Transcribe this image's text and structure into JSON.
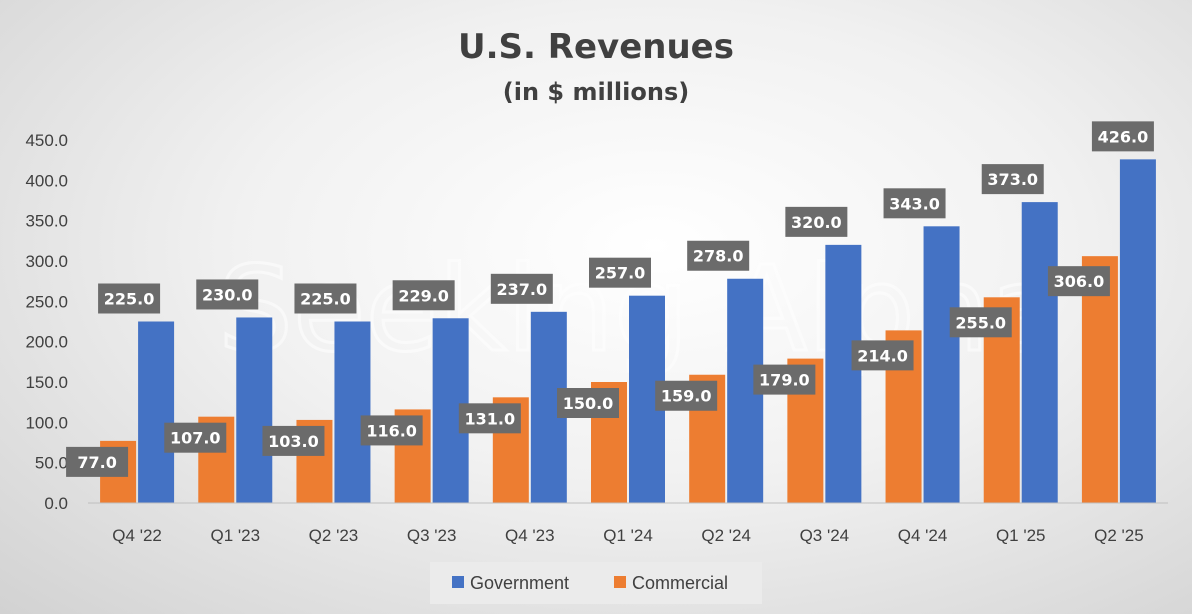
{
  "chart_data": {
    "type": "bar",
    "title": "U.S. Revenues",
    "subtitle": "(in $ millions)",
    "watermark": "Seeking Alpha",
    "categories": [
      "Q4 '22",
      "Q1 '23",
      "Q2 '23",
      "Q3 '23",
      "Q4 '23",
      "Q1 '24",
      "Q2 '24",
      "Q3 '24",
      "Q4 '24",
      "Q1 '25",
      "Q2 '25"
    ],
    "series": [
      {
        "name": "Government",
        "color": "#4472C4",
        "values": [
          225.0,
          230.0,
          225.0,
          229.0,
          237.0,
          257.0,
          278.0,
          320.0,
          343.0,
          373.0,
          426.0
        ]
      },
      {
        "name": "Commercial",
        "color": "#ED7D31",
        "values": [
          77.0,
          107.0,
          103.0,
          116.0,
          131.0,
          150.0,
          159.0,
          179.0,
          214.0,
          255.0,
          306.0
        ]
      }
    ],
    "draw_order": [
      "Commercial",
      "Government"
    ],
    "yticks": [
      "0.0",
      "50.0",
      "100.0",
      "150.0",
      "200.0",
      "250.0",
      "300.0",
      "350.0",
      "400.0",
      "450.0"
    ],
    "ylim": [
      0,
      450
    ],
    "xlabel": "",
    "ylabel": "",
    "legend": "bottom",
    "grid": false,
    "label_box_color": "#6b6b6b"
  }
}
